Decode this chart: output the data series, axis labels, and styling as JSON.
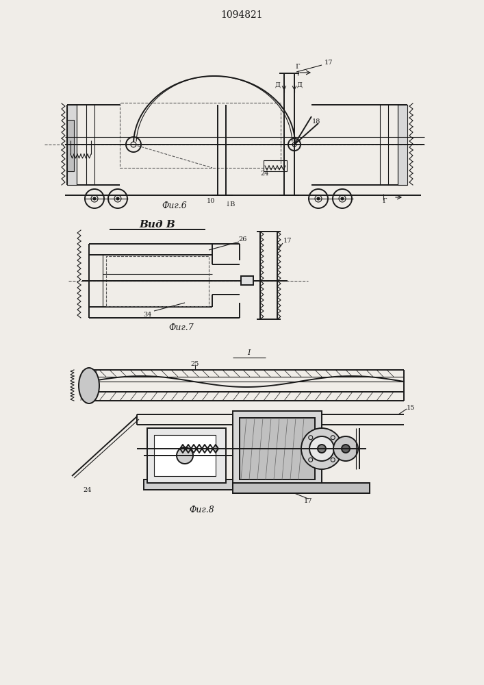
{
  "title": "1094821",
  "fig6_caption": "Фиг.6",
  "fig7_caption": "Фиг.7",
  "fig8_caption": "Фиг.8",
  "vid_b_label": "Вид В",
  "background_color": "#f0ede8",
  "line_color": "#1a1a1a",
  "dashed_color": "#555555",
  "hatch_color": "#333333",
  "label_fontsize": 7,
  "caption_fontsize": 9,
  "title_fontsize": 10
}
